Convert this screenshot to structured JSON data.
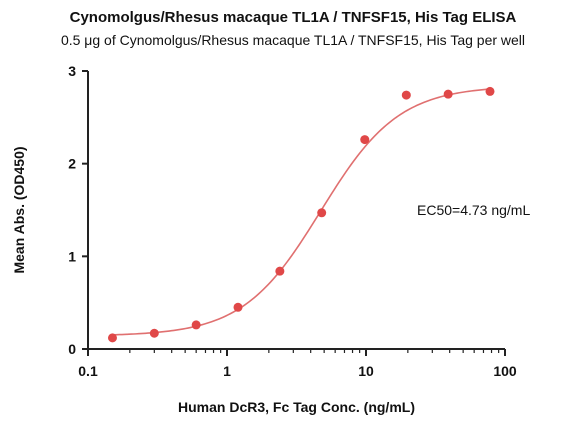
{
  "chart_data": {
    "type": "scatter",
    "title": "Cynomolgus/Rhesus macaque TL1A / TNFSF15, His Tag  ELISA",
    "subtitle": "0.5 μg of Cynomolgus/Rhesus macaque TL1A / TNFSF15, His Tag  per well",
    "xlabel": "Human DcR3, Fc Tag Conc. (ng/mL)",
    "ylabel": "Mean Abs. (OD450)",
    "x_scale": "log",
    "xlim": [
      0.1,
      100
    ],
    "ylim": [
      0,
      3
    ],
    "x_ticks": [
      0.1,
      1,
      10,
      100
    ],
    "x_tick_labels": [
      "0.1",
      "1",
      "10",
      "100"
    ],
    "y_ticks": [
      0,
      1,
      2,
      3
    ],
    "y_tick_labels": [
      "0",
      "1",
      "2",
      "3"
    ],
    "grid": false,
    "annotation": "EC50=4.73 ng/mL",
    "colors": {
      "points": "#e04848",
      "curve": "#e07070",
      "axis": "#222222"
    },
    "series": [
      {
        "points": [
          {
            "x": 0.15,
            "y": 0.12
          },
          {
            "x": 0.3,
            "y": 0.17
          },
          {
            "x": 0.6,
            "y": 0.26
          },
          {
            "x": 1.2,
            "y": 0.45
          },
          {
            "x": 2.4,
            "y": 0.84
          },
          {
            "x": 4.8,
            "y": 1.47
          },
          {
            "x": 9.8,
            "y": 2.26
          },
          {
            "x": 19.5,
            "y": 2.74
          },
          {
            "x": 39.0,
            "y": 2.75
          },
          {
            "x": 78.0,
            "y": 2.78
          }
        ]
      }
    ],
    "fit": {
      "model": "4PL",
      "bottom": 0.14,
      "top": 2.84,
      "ec50": 4.73,
      "hill": 1.55,
      "x_range": [
        0.15,
        78
      ]
    }
  }
}
